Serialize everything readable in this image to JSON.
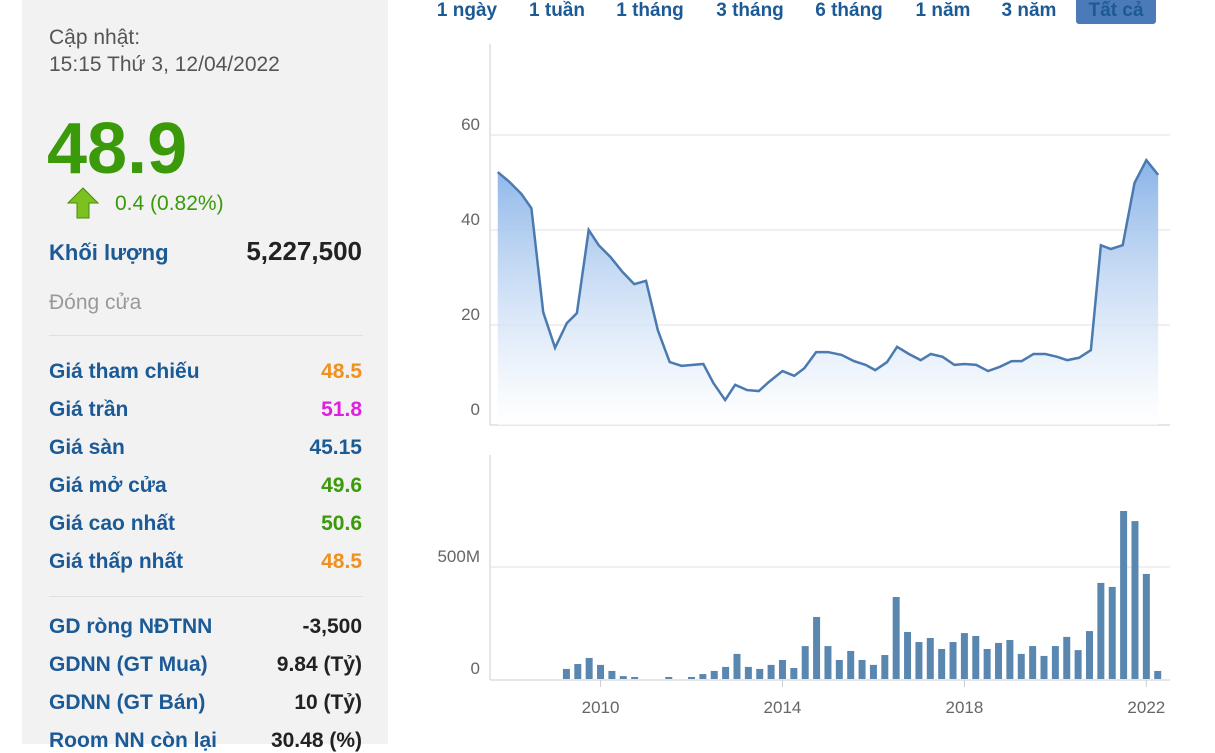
{
  "panel": {
    "updated_label": "Cập nhật:",
    "updated_time": "15:15 Thứ 3, 12/04/2022",
    "price": "48.9",
    "change": "0.4 (0.82%)",
    "volume_label": "Khối lượng",
    "volume": "5,227,500",
    "close_label": "Đóng cửa",
    "rows": [
      {
        "label": "Giá tham chiếu",
        "value": "48.5",
        "color": "#f0901e"
      },
      {
        "label": "Giá trần",
        "value": "51.8",
        "color": "#e020e0"
      },
      {
        "label": "Giá sàn",
        "value": "45.15",
        "color": "#1c5a96"
      },
      {
        "label": "Giá mở cửa",
        "value": "49.6",
        "color": "#3a9a0a"
      },
      {
        "label": "Giá cao nhất",
        "value": "50.6",
        "color": "#3a9a0a"
      },
      {
        "label": "Giá thấp nhất",
        "value": "48.5",
        "color": "#f0901e"
      }
    ],
    "foreign_rows": [
      {
        "label": "GD ròng NĐTNN",
        "value": "-3,500"
      },
      {
        "label": "GDNN (GT Mua)",
        "value": "9.84 (Tỷ)"
      },
      {
        "label": "GDNN (GT Bán)",
        "value": "10 (Tỷ)"
      },
      {
        "label": "Room NN còn lại",
        "value": "30.48 (%)"
      }
    ]
  },
  "range_buttons": [
    "1 ngày",
    "1 tuần",
    "1 tháng",
    "3 tháng",
    "6 tháng",
    "1 năm",
    "3 năm",
    "Tất cả"
  ],
  "chart_data": [
    {
      "type": "line",
      "color": "#4a7ab0",
      "fill": "#8ab4e8",
      "x": [
        2007.74,
        2008.0,
        2008.26,
        2008.48,
        2008.74,
        2009.0,
        2009.26,
        2009.48,
        2009.74,
        2009.96,
        2010.22,
        2010.48,
        2010.74,
        2011.0,
        2011.26,
        2011.52,
        2011.78,
        2012.26,
        2012.48,
        2012.74,
        2012.96,
        2013.22,
        2013.48,
        2013.7,
        2014.0,
        2014.26,
        2014.48,
        2014.74,
        2015.0,
        2015.3,
        2015.57,
        2015.83,
        2016.04,
        2016.3,
        2016.52,
        2016.78,
        2017.04,
        2017.26,
        2017.52,
        2017.78,
        2018.0,
        2018.26,
        2018.52,
        2018.78,
        2019.04,
        2019.26,
        2019.52,
        2019.78,
        2020.04,
        2020.26,
        2020.52,
        2020.78,
        2021.0,
        2021.22,
        2021.48,
        2021.74,
        2022.0,
        2022.26
      ],
      "values": [
        52.2,
        50.1,
        47.6,
        44.6,
        22.7,
        15.2,
        20.4,
        22.5,
        40.0,
        36.8,
        34.3,
        31.2,
        28.6,
        29.3,
        18.9,
        12.2,
        11.4,
        11.8,
        7.8,
        4.2,
        7.4,
        6.3,
        6.1,
        8.0,
        10.3,
        9.3,
        10.9,
        14.3,
        14.3,
        13.7,
        12.4,
        11.6,
        10.5,
        12.2,
        15.4,
        13.9,
        12.6,
        13.9,
        13.3,
        11.6,
        11.8,
        11.6,
        10.3,
        11.2,
        12.4,
        12.4,
        13.9,
        13.9,
        13.3,
        12.6,
        13.1,
        14.7,
        36.8,
        36.0,
        36.8,
        49.9,
        54.7,
        51.6
      ],
      "xlim": [
        2007.57,
        2022.52
      ],
      "ylim": [
        0,
        80
      ],
      "yticks": [
        0,
        20,
        40,
        60
      ],
      "grid": true
    },
    {
      "type": "bar",
      "color": "#5a87b0",
      "x": [
        2009.25,
        2009.5,
        2009.75,
        2010.0,
        2010.25,
        2010.5,
        2010.75,
        2011.5,
        2012.0,
        2012.25,
        2012.5,
        2012.75,
        2013.0,
        2013.25,
        2013.5,
        2013.75,
        2014.0,
        2014.25,
        2014.5,
        2014.75,
        2015.0,
        2015.25,
        2015.5,
        2015.75,
        2016.0,
        2016.25,
        2016.5,
        2016.75,
        2017.0,
        2017.25,
        2017.5,
        2017.75,
        2018.0,
        2018.25,
        2018.5,
        2018.75,
        2019.0,
        2019.25,
        2019.5,
        2019.75,
        2020.0,
        2020.25,
        2020.5,
        2020.75,
        2021.0,
        2021.25,
        2021.5,
        2021.75,
        2022.0,
        2022.25
      ],
      "values": [
        45000000,
        67000000,
        94000000,
        63000000,
        36000000,
        13000000,
        9000000,
        9000000,
        9000000,
        22000000,
        36000000,
        54000000,
        112000000,
        54000000,
        45000000,
        63000000,
        85000000,
        49000000,
        147000000,
        277000000,
        147000000,
        85000000,
        125000000,
        85000000,
        63000000,
        107000000,
        366000000,
        210000000,
        165000000,
        183000000,
        134000000,
        165000000,
        205000000,
        192000000,
        134000000,
        161000000,
        174000000,
        112000000,
        147000000,
        103000000,
        147000000,
        188000000,
        129000000,
        214000000,
        429000000,
        411000000,
        750000000,
        705000000,
        469000000,
        36000000
      ],
      "xlim": [
        2007.57,
        2022.52
      ],
      "xticks": [
        2010,
        2014,
        2018,
        2022
      ],
      "ylim": [
        0,
        1000000000
      ],
      "yticks": [
        0,
        {
          "value": 500000000,
          "label": "500M"
        }
      ],
      "grid": true
    }
  ]
}
